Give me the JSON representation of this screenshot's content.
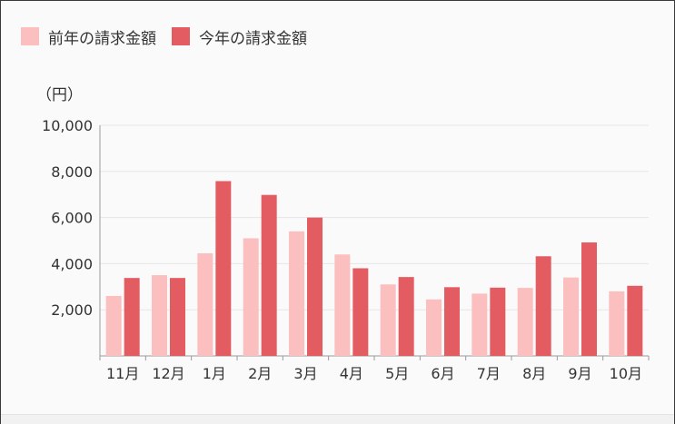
{
  "chart_data": {
    "type": "bar",
    "unit_label": "（円）",
    "categories": [
      "11月",
      "12月",
      "1月",
      "2月",
      "3月",
      "4月",
      "5月",
      "6月",
      "7月",
      "8月",
      "9月",
      "10月"
    ],
    "series": [
      {
        "name": "前年の請求金額",
        "color": "#fbbfbf",
        "values": [
          2600,
          3500,
          4450,
          5100,
          5400,
          4400,
          3100,
          2450,
          2700,
          2950,
          3400,
          2800
        ]
      },
      {
        "name": "今年の請求金額",
        "color": "#e35c62",
        "values": [
          3380,
          3380,
          7580,
          6980,
          6000,
          3800,
          3420,
          2980,
          2960,
          4320,
          4920,
          3040
        ]
      }
    ],
    "yticks": [
      "2,000",
      "4,000",
      "6,000",
      "8,000",
      "10,000"
    ],
    "ytick_values": [
      2000,
      4000,
      6000,
      8000,
      10000
    ],
    "ylim": [
      0,
      10000
    ],
    "grid": true,
    "legend_position": "top-left"
  }
}
